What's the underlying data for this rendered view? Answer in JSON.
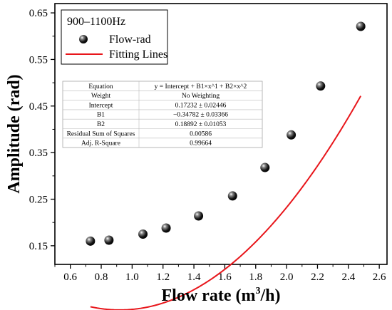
{
  "chart_data": {
    "type": "scatter",
    "xlabel_main": "Flow rate (m",
    "xlabel_sup": "3",
    "xlabel_end": "/h)",
    "ylabel": "Amplitude (rad)",
    "xlim": [
      0.5,
      2.65
    ],
    "ylim": [
      0.11,
      0.67
    ],
    "xticks": [
      "0.6",
      "0.8",
      "1.0",
      "1.2",
      "1.4",
      "1.6",
      "1.8",
      "2.0",
      "2.2",
      "2.4",
      "2.6"
    ],
    "yticks": [
      "0.15",
      "0.25",
      "0.35",
      "0.45",
      "0.55",
      "0.65"
    ],
    "grid": false,
    "legend": {
      "title": "900–1100Hz",
      "placement": "top-left",
      "entries": [
        "Flow-rad",
        "Fitting Lines"
      ]
    },
    "series": [
      {
        "name": "Flow-rad",
        "marker": "sphere",
        "color": "#000000",
        "x": [
          0.73,
          0.85,
          1.07,
          1.22,
          1.43,
          1.65,
          1.86,
          2.03,
          2.22,
          2.48
        ],
        "y": [
          0.16,
          0.162,
          0.175,
          0.188,
          0.214,
          0.257,
          0.318,
          0.388,
          0.493,
          0.621
        ]
      },
      {
        "name": "Fitting Lines",
        "type": "line",
        "color": "#e8161b",
        "intercept": 0.17232,
        "b1": -0.34782,
        "b2": 0.18892,
        "x_range": [
          0.73,
          2.48
        ]
      }
    ],
    "fit_table": [
      [
        "Equation",
        "y = Intercept + B1×x^1 + B2×x^2"
      ],
      [
        "Weight",
        "No Weighting"
      ],
      [
        "Intercept",
        "0.17232 ± 0.02446"
      ],
      [
        "B1",
        "−0.34782 ± 0.03366"
      ],
      [
        "B2",
        "0.18892 ± 0.01053"
      ],
      [
        "Residual Sum of Squares",
        "0.00586"
      ],
      [
        "Adj. R-Square",
        "0.99664"
      ]
    ]
  }
}
